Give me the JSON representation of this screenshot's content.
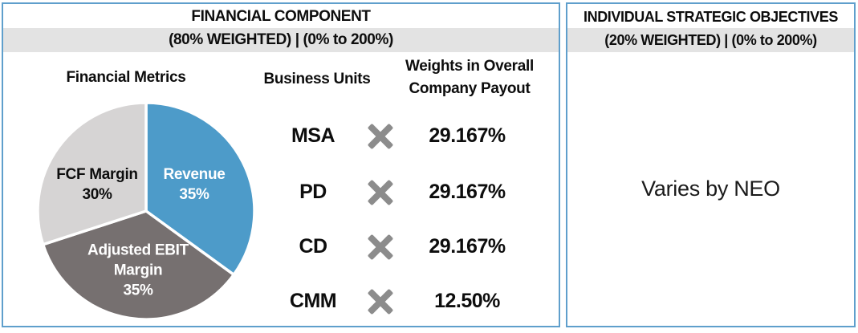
{
  "left_panel": {
    "title": "FINANCIAL COMPONENT",
    "subtitle": "(80% WEIGHTED) | (0% to 200%)",
    "metrics_header": "Financial Metrics",
    "business_units_header": "Business Units",
    "weights_header": [
      "Weights in Overall",
      "Company Payout"
    ],
    "rows": [
      {
        "unit": "MSA",
        "weight": "29.167%"
      },
      {
        "unit": "PD",
        "weight": "29.167%"
      },
      {
        "unit": "CD",
        "weight": "29.167%"
      },
      {
        "unit": "CMM",
        "weight": "12.50%"
      }
    ]
  },
  "right_panel": {
    "title": "INDIVIDUAL STRATEGIC OBJECTIVES",
    "subtitle": "(20% WEIGHTED) | (0% to 200%)",
    "body": "Varies by NEO"
  },
  "icons": {
    "multiply": "x-cross"
  },
  "colors": {
    "panel_border": "#5f9fcc",
    "subtitle_band": "#e3e3e3",
    "multiply_gray": "#8c8c8c",
    "pie_blue": "#4d9bc9",
    "pie_taupe": "#767070",
    "pie_light_gray": "#d6d4d4"
  },
  "chart_data": {
    "type": "pie",
    "title": "Financial Metrics",
    "start_angle_deg": 0,
    "direction": "clockwise",
    "radius_px": 135,
    "slices": [
      {
        "label": "Revenue",
        "value": 35,
        "color": "#4d9bc9",
        "text_color": "#ffffff",
        "label_lines": [
          "Revenue",
          "35%"
        ],
        "label_offset": [
          60,
          -33
        ]
      },
      {
        "label": "Adjusted EBIT Margin",
        "value": 35,
        "color": "#767070",
        "text_color": "#ffffff",
        "label_lines": [
          "Adjusted EBIT",
          "Margin",
          "35%"
        ],
        "label_offset": [
          -10,
          74
        ]
      },
      {
        "label": "FCF Margin",
        "value": 30,
        "color": "#d6d4d4",
        "text_color": "#0d0d0d",
        "label_lines": [
          "FCF Margin",
          "30%"
        ],
        "label_offset": [
          -61,
          -33
        ]
      }
    ]
  }
}
